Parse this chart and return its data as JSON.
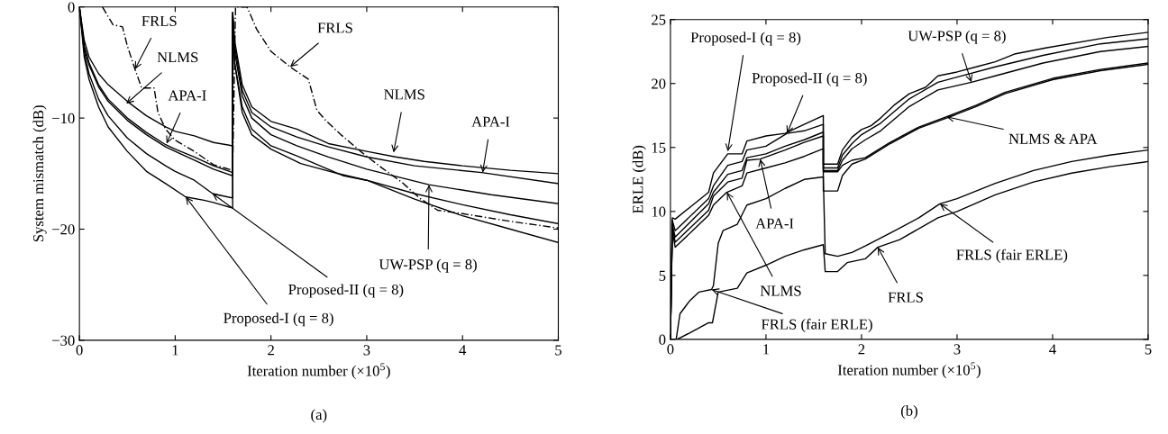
{
  "chart_data": [
    {
      "type": "line",
      "xlabel": "Iteration number (×10$^{5}$)",
      "ylabel": "System mismatch (dB)",
      "xlim": [
        0,
        5
      ],
      "ylim": [
        -30,
        0
      ],
      "xticks": [
        0,
        1,
        2,
        3,
        4,
        5
      ],
      "yticks": [
        {
          "value": -30,
          "label": "−30"
        },
        {
          "value": -20,
          "label": "−20"
        },
        {
          "value": -10,
          "label": "−10"
        },
        0
      ],
      "grid": false,
      "series": [
        {
          "color": "#000000",
          "line_style": "solid",
          "x": [
            0,
            0.05,
            0.1,
            0.2,
            0.3,
            0.5,
            0.7,
            0.9,
            1.0,
            1.2,
            1.4,
            1.6,
            1.6,
            1.62,
            1.7,
            1.8,
            2.0,
            2.27,
            2.6,
            3.0,
            3.3,
            3.6,
            4.0,
            4.5,
            5.0
          ],
          "values": [
            0,
            -3,
            -4.5,
            -6,
            -7,
            -8.5,
            -9.8,
            -10.8,
            -11.2,
            -11.6,
            -12.2,
            -12.5,
            -0.5,
            -3,
            -7,
            -9,
            -10.3,
            -11.0,
            -12.3,
            -13.0,
            -13.5,
            -13.9,
            -14.3,
            -14.7,
            -15.0
          ]
        },
        {
          "color": "#000000",
          "line_style": "solid",
          "x": [
            0,
            0.05,
            0.1,
            0.2,
            0.3,
            0.5,
            0.7,
            0.9,
            1.0,
            1.2,
            1.4,
            1.6,
            1.6,
            1.62,
            1.7,
            1.8,
            2.0,
            2.27,
            2.6,
            3.0,
            3.5,
            4.2,
            5.0
          ],
          "values": [
            0,
            -3.5,
            -5,
            -7,
            -8.3,
            -10,
            -11.3,
            -12.4,
            -12.8,
            -13.5,
            -14.3,
            -14.9,
            -0.5,
            -3.5,
            -7.5,
            -9.5,
            -10.8,
            -11.7,
            -12.6,
            -13.5,
            -14.3,
            -14.9,
            -15.9
          ]
        },
        {
          "color": "#000000",
          "line_style": "solid",
          "x": [
            0,
            0.05,
            0.1,
            0.2,
            0.3,
            0.5,
            0.7,
            0.9,
            1.0,
            1.2,
            1.4,
            1.6,
            1.6,
            1.62,
            1.7,
            1.8,
            2.0,
            2.27,
            2.6,
            3.0,
            3.65,
            4.3,
            5.0
          ],
          "values": [
            0,
            -3.7,
            -5.2,
            -7.2,
            -8.5,
            -10.2,
            -11.5,
            -12.6,
            -13,
            -13.8,
            -14.6,
            -15.2,
            -0.5,
            -4,
            -8,
            -10,
            -11.5,
            -12.5,
            -13.5,
            -14.6,
            -16.0,
            -16.9,
            -17.7
          ]
        },
        {
          "color": "#000000",
          "line_style": "solid",
          "x": [
            0,
            0.05,
            0.1,
            0.2,
            0.3,
            0.5,
            0.7,
            0.9,
            1.0,
            1.2,
            1.39,
            1.6,
            1.6,
            1.62,
            1.7,
            1.8,
            2.0,
            2.27,
            2.76,
            3.0,
            3.5,
            4.0,
            4.5,
            5.0
          ],
          "values": [
            0,
            -4,
            -6,
            -8.3,
            -9.8,
            -11.8,
            -13.2,
            -14.3,
            -14.8,
            -15.6,
            -16.8,
            -17.2,
            -0.8,
            -5,
            -9,
            -11,
            -12.5,
            -13.4,
            -15.2,
            -15.6,
            -16.8,
            -17.8,
            -18.7,
            -19.5
          ]
        },
        {
          "color": "#000000",
          "line_style": "solid",
          "x": [
            0,
            0.05,
            0.1,
            0.2,
            0.3,
            0.5,
            0.7,
            0.9,
            1.11,
            1.3,
            1.4,
            1.6,
            1.6,
            1.62,
            1.7,
            1.8,
            2.0,
            2.31,
            2.7,
            3.0,
            3.5,
            4.0,
            4.5,
            5.0
          ],
          "values": [
            0,
            -4.5,
            -6.5,
            -9,
            -10.8,
            -13,
            -14.8,
            -15.9,
            -17.1,
            -17.4,
            -17.6,
            -18.1,
            -0.8,
            -5,
            -9.5,
            -11.5,
            -12.8,
            -14.1,
            -15.0,
            -15.6,
            -17.3,
            -18.8,
            -20,
            -21.2
          ]
        },
        {
          "color": "#000000",
          "line_style": "dashed",
          "x": [
            0.24,
            0.35,
            0.45,
            0.5,
            0.58,
            0.65,
            0.78,
            0.82,
            0.9,
            1.0,
            1.2,
            1.4,
            1.6,
            1.63,
            1.75,
            1.85,
            2.0,
            2.2,
            2.39,
            2.48,
            2.57,
            2.73,
            2.95,
            3.16,
            3.37,
            3.55,
            3.74,
            4.0,
            4.5,
            5.0
          ],
          "values": [
            0,
            -1.6,
            -1.8,
            -3.5,
            -5.6,
            -7.3,
            -7.3,
            -9.5,
            -11,
            -12,
            -13,
            -14.2,
            -14.7,
            0,
            0,
            -2,
            -4,
            -5.4,
            -6.5,
            -9.3,
            -10.2,
            -11.5,
            -13.1,
            -14.5,
            -15.8,
            -17.2,
            -18.3,
            -18.6,
            -19.3,
            -19.9
          ]
        }
      ],
      "annotations": [
        {
          "text": "FRLS",
          "x": 0.58,
          "y": -5.6
        },
        {
          "text": "FRLS",
          "x": 2.2,
          "y": -5.4
        },
        {
          "text": "NLMS",
          "x": 0.49,
          "y": -8.7
        },
        {
          "text": "NLMS",
          "x": 3.28,
          "y": -13.1
        },
        {
          "text": "APA-I",
          "x": 0.91,
          "y": -12.3
        },
        {
          "text": "APA-I",
          "x": 4.21,
          "y": -14.9
        },
        {
          "text": "UW-PSP (q = 8)",
          "x": 3.65,
          "y": -16.0
        },
        {
          "text": "Proposed-II (q = 8)",
          "x": 1.39,
          "y": -16.8
        },
        {
          "text": "Proposed-I (q = 8)",
          "x": 1.11,
          "y": -17.1
        },
        "(a)"
      ]
    },
    {
      "type": "line",
      "xlabel": "Iteration number (×10$^{5}$)",
      "ylabel": "ERLE (dB)",
      "xlim": [
        0,
        5
      ],
      "ylim": [
        0,
        25
      ],
      "xticks": [
        0,
        1,
        2,
        3,
        4,
        5
      ],
      "yticks": [
        0,
        5,
        10,
        15,
        20,
        25
      ],
      "grid": false,
      "series": [
        {
          "color": "#000000",
          "line_style": "solid",
          "x": [
            0,
            0.02,
            0.05,
            0.4,
            0.45,
            0.6,
            0.75,
            0.8,
            1.0,
            1.2,
            1.4,
            1.6,
            1.6,
            1.75,
            1.8,
            1.9,
            2.0,
            2.1,
            2.2,
            2.34,
            2.5,
            2.67,
            2.8,
            3.0,
            3.2,
            3.4,
            3.6,
            3.94,
            4.57,
            5.0
          ],
          "values": [
            0,
            9.5,
            9.4,
            11.5,
            13.0,
            14.5,
            14.5,
            15.5,
            15.9,
            16.1,
            16.8,
            17.5,
            13.7,
            13.7,
            14.8,
            15.8,
            16.4,
            16.7,
            17.3,
            18.3,
            19.2,
            19.7,
            20.6,
            20.9,
            21.3,
            21.7,
            22.3,
            22.8,
            23.6,
            24.0
          ]
        },
        {
          "color": "#000000",
          "line_style": "solid",
          "x": [
            0,
            0.02,
            0.05,
            0.4,
            0.45,
            0.6,
            0.75,
            0.8,
            1.0,
            1.22,
            1.4,
            1.6,
            1.6,
            1.75,
            1.8,
            1.9,
            2.0,
            2.2,
            2.5,
            2.8,
            3.0,
            3.4,
            3.9,
            4.5,
            5.0
          ],
          "values": [
            0,
            9.3,
            8.5,
            11.0,
            12.0,
            13.6,
            13.9,
            14.8,
            15.1,
            16.1,
            16.3,
            16.8,
            13.4,
            13.4,
            14.4,
            15.3,
            16.0,
            16.9,
            18.8,
            20.1,
            20.5,
            21.3,
            22.2,
            23.1,
            23.5
          ]
        },
        {
          "color": "#000000",
          "line_style": "solid",
          "x": [
            0,
            0.02,
            0.05,
            0.4,
            0.45,
            0.6,
            0.75,
            0.8,
            1.0,
            1.2,
            1.4,
            1.6,
            1.6,
            1.75,
            1.8,
            1.9,
            2.04,
            2.2,
            2.5,
            2.8,
            3.15,
            3.4,
            3.9,
            4.5,
            5.0
          ],
          "values": [
            0,
            9.0,
            8.0,
            10.6,
            11.5,
            12.9,
            13.2,
            14.2,
            14.5,
            15.1,
            15.6,
            16.2,
            13.2,
            13.2,
            14.0,
            14.9,
            15.6,
            16.3,
            18.2,
            19.5,
            20.1,
            20.6,
            21.6,
            22.5,
            22.9
          ]
        },
        {
          "color": "#000000",
          "line_style": "solid",
          "x": [
            0,
            0.02,
            0.05,
            0.4,
            0.45,
            0.6,
            0.75,
            0.8,
            0.94,
            1.2,
            1.4,
            1.6,
            1.6,
            1.75,
            1.8,
            1.9,
            2.04,
            2.3,
            2.6,
            2.89,
            3.2,
            3.5,
            4.0,
            4.5,
            5.0
          ],
          "values": [
            0,
            8.8,
            7.6,
            10.1,
            11.2,
            12.3,
            12.6,
            14.0,
            14.1,
            14.8,
            15.4,
            15.9,
            13.1,
            13.1,
            13.6,
            14.0,
            14.2,
            15.4,
            16.6,
            17.4,
            18.3,
            19.3,
            20.4,
            21.1,
            21.6
          ]
        },
        {
          "color": "#000000",
          "line_style": "solid",
          "x": [
            0,
            0.02,
            0.05,
            0.4,
            0.45,
            0.59,
            0.75,
            0.8,
            1.0,
            1.2,
            1.4,
            1.6,
            1.6,
            1.75,
            1.8,
            1.9,
            2.04,
            2.3,
            2.6,
            2.89,
            3.2,
            3.5,
            4.0,
            4.5,
            5.0
          ],
          "values": [
            0,
            8.5,
            7.2,
            9.7,
            10.5,
            11.5,
            12.0,
            13.0,
            13.4,
            13.8,
            14.3,
            14.9,
            11.6,
            11.6,
            12.8,
            13.7,
            14.1,
            15.3,
            16.5,
            17.3,
            18.2,
            19.2,
            20.3,
            21.0,
            21.5
          ]
        },
        {
          "color": "#000000",
          "line_style": "solid",
          "x": [
            0.06,
            0.1,
            0.2,
            0.3,
            0.43,
            0.45,
            0.5,
            0.55,
            0.7,
            0.8,
            1.0,
            1.2,
            1.4,
            1.6,
            1.62,
            1.75,
            1.9,
            2.04,
            2.3,
            2.6,
            2.82,
            3.0,
            3.4,
            3.8,
            4.2,
            4.6,
            5.0
          ],
          "values": [
            0,
            2,
            3,
            3.7,
            3.9,
            4.2,
            7.5,
            8.5,
            9.0,
            10.5,
            11.0,
            11.8,
            12.5,
            12.7,
            6.7,
            6.5,
            6.8,
            7.3,
            8.3,
            9.5,
            10.6,
            11.0,
            12.2,
            13.2,
            13.9,
            14.4,
            14.8
          ]
        },
        {
          "color": "#000000",
          "line_style": "solid",
          "x": [
            0.07,
            0.2,
            0.4,
            0.44,
            0.5,
            0.7,
            0.8,
            1.0,
            1.2,
            1.4,
            1.6,
            1.62,
            1.75,
            1.85,
            2.04,
            2.17,
            2.4,
            2.8,
            3.0,
            3.4,
            3.8,
            4.2,
            4.6,
            5.0
          ],
          "values": [
            0,
            0.5,
            1.3,
            1.3,
            3.7,
            4.0,
            5.2,
            5.8,
            6.5,
            7.0,
            7.4,
            5.3,
            5.3,
            6.0,
            6.3,
            7.2,
            7.8,
            9.5,
            10.0,
            11.3,
            12.3,
            13.0,
            13.5,
            13.9
          ]
        }
      ],
      "annotations": [
        {
          "text": "Proposed-I (q = 8)",
          "x": 0.6,
          "y": 14.7
        },
        {
          "text": "Proposed-II (q = 8)",
          "x": 1.22,
          "y": 16.1
        },
        {
          "text": "UW-PSP (q = 8)",
          "x": 3.15,
          "y": 20.1
        },
        {
          "text": "NLMS & APA",
          "x": 2.89,
          "y": 17.4
        },
        {
          "text": "APA-I",
          "x": 0.94,
          "y": 14.1
        },
        {
          "text": "NLMS",
          "x": 0.59,
          "y": 11.5
        },
        {
          "text": "FRLS (fair ERLE)",
          "x": 0.43,
          "y": 3.9
        },
        {
          "text": "FRLS (fair ERLE)",
          "x": 2.82,
          "y": 10.6
        },
        {
          "text": "FRLS",
          "x": 2.17,
          "y": 7.2
        },
        "(b)"
      ]
    }
  ]
}
